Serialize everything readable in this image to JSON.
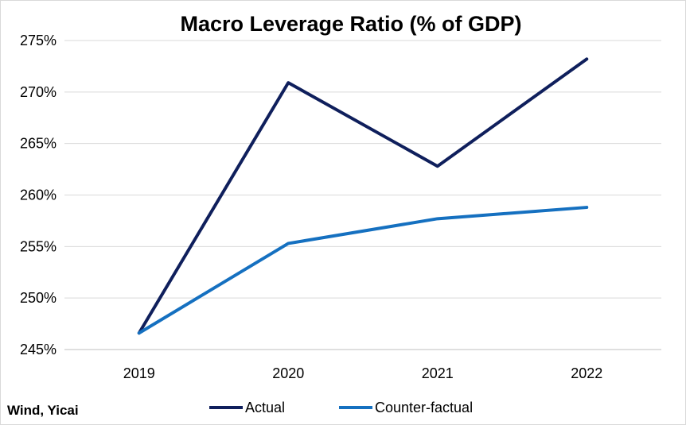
{
  "source_note": "Wind, Yicai",
  "chart_data": {
    "type": "line",
    "title": "Macro Leverage Ratio (% of GDP)",
    "xlabel": "",
    "ylabel": "",
    "categories": [
      "2019",
      "2020",
      "2021",
      "2022"
    ],
    "ylim": [
      245,
      275
    ],
    "yticks": [
      245,
      250,
      255,
      260,
      265,
      270,
      275
    ],
    "ytick_labels": [
      "245%",
      "250%",
      "255%",
      "260%",
      "265%",
      "270%",
      "275%"
    ],
    "grid": true,
    "legend_position": "bottom",
    "series": [
      {
        "name": "Actual",
        "color": "#0f1f5c",
        "values": [
          246.6,
          270.9,
          262.8,
          273.2
        ]
      },
      {
        "name": "Counter-factual",
        "color": "#1570c0",
        "values": [
          246.6,
          255.3,
          257.7,
          258.8
        ]
      }
    ]
  }
}
